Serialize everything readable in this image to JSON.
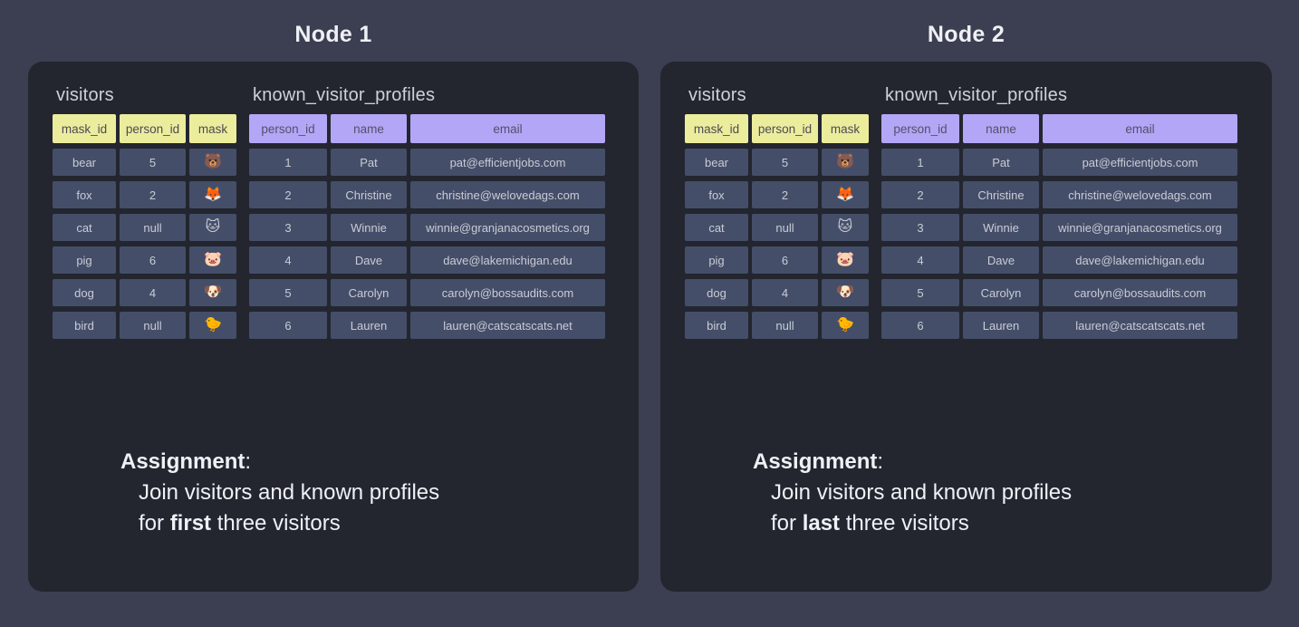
{
  "colors": {
    "page_bg": "#3c3f51",
    "panel_bg": "#23262f",
    "cell_bg": "#454e69",
    "yellow_header_bg": "#ecec9d",
    "purple_header_bg": "#b3a6f6",
    "text_light": "#eef1f5"
  },
  "nodes": [
    {
      "title": "Node 1",
      "visitors": {
        "title": "visitors",
        "columns": [
          "mask_id",
          "person_id",
          "mask"
        ],
        "rows": [
          {
            "mask_id": "bear",
            "person_id": "5",
            "mask": "🐻"
          },
          {
            "mask_id": "fox",
            "person_id": "2",
            "mask": "🦊"
          },
          {
            "mask_id": "cat",
            "person_id": "null",
            "mask": "🐱"
          },
          {
            "mask_id": "pig",
            "person_id": "6",
            "mask": "🐷"
          },
          {
            "mask_id": "dog",
            "person_id": "4",
            "mask": "🐶"
          },
          {
            "mask_id": "bird",
            "person_id": "null",
            "mask": "🐤"
          }
        ]
      },
      "profiles": {
        "title": "known_visitor_profiles",
        "columns": [
          "person_id",
          "name",
          "email"
        ],
        "rows": [
          {
            "person_id": "1",
            "name": "Pat",
            "email": "pat@efficientjobs.com"
          },
          {
            "person_id": "2",
            "name": "Christine",
            "email": "christine@welovedags.com"
          },
          {
            "person_id": "3",
            "name": "Winnie",
            "email": "winnie@granjanacosmetics.org"
          },
          {
            "person_id": "4",
            "name": "Dave",
            "email": "dave@lakemichigan.edu"
          },
          {
            "person_id": "5",
            "name": "Carolyn",
            "email": "carolyn@bossaudits.com"
          },
          {
            "person_id": "6",
            "name": "Lauren",
            "email": "lauren@catscatscats.net"
          }
        ]
      },
      "assignment": {
        "heading": "Assignment",
        "colon": ":",
        "line1": "Join visitors and known profiles",
        "line2_prefix": "for ",
        "line2_keyword": "first",
        "line2_suffix": " three visitors"
      }
    },
    {
      "title": "Node 2",
      "visitors": {
        "title": "visitors",
        "columns": [
          "mask_id",
          "person_id",
          "mask"
        ],
        "rows": [
          {
            "mask_id": "bear",
            "person_id": "5",
            "mask": "🐻"
          },
          {
            "mask_id": "fox",
            "person_id": "2",
            "mask": "🦊"
          },
          {
            "mask_id": "cat",
            "person_id": "null",
            "mask": "🐱"
          },
          {
            "mask_id": "pig",
            "person_id": "6",
            "mask": "🐷"
          },
          {
            "mask_id": "dog",
            "person_id": "4",
            "mask": "🐶"
          },
          {
            "mask_id": "bird",
            "person_id": "null",
            "mask": "🐤"
          }
        ]
      },
      "profiles": {
        "title": "known_visitor_profiles",
        "columns": [
          "person_id",
          "name",
          "email"
        ],
        "rows": [
          {
            "person_id": "1",
            "name": "Pat",
            "email": "pat@efficientjobs.com"
          },
          {
            "person_id": "2",
            "name": "Christine",
            "email": "christine@welovedags.com"
          },
          {
            "person_id": "3",
            "name": "Winnie",
            "email": "winnie@granjanacosmetics.org"
          },
          {
            "person_id": "4",
            "name": "Dave",
            "email": "dave@lakemichigan.edu"
          },
          {
            "person_id": "5",
            "name": "Carolyn",
            "email": "carolyn@bossaudits.com"
          },
          {
            "person_id": "6",
            "name": "Lauren",
            "email": "lauren@catscatscats.net"
          }
        ]
      },
      "assignment": {
        "heading": "Assignment",
        "colon": ":",
        "line1": "Join visitors and known profiles",
        "line2_prefix": "for ",
        "line2_keyword": "last",
        "line2_suffix": " three visitors"
      }
    }
  ]
}
